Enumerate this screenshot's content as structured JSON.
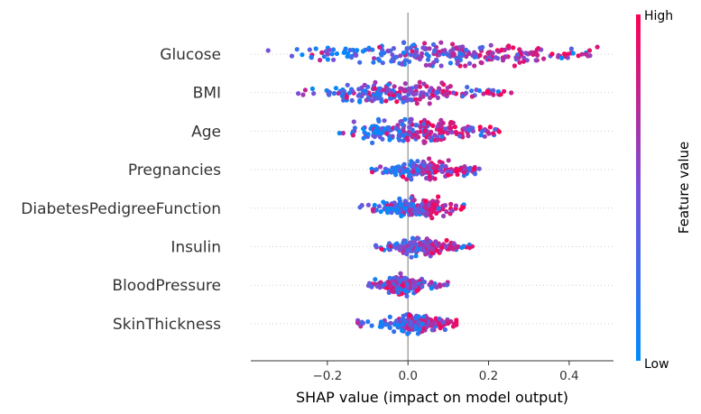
{
  "chart_data": {
    "type": "scatter",
    "subtype": "shap-beeswarm",
    "xlabel": "SHAP value (impact on model output)",
    "xlim": [
      -0.39,
      0.51
    ],
    "xticks": [
      {
        "value": -0.2,
        "label": "−0.2"
      },
      {
        "value": 0.0,
        "label": "0.0"
      },
      {
        "value": 0.2,
        "label": "0.2"
      },
      {
        "value": 0.4,
        "label": "0.4"
      }
    ],
    "zero_line": 0.0,
    "colorbar": {
      "title": "Feature value",
      "high_label": "High",
      "low_label": "Low",
      "low_color": "#008bfb",
      "high_color": "#ff0052"
    },
    "features": [
      {
        "name": "Glucose",
        "min": -0.35,
        "max": 0.47,
        "spread": 1.0,
        "low_center": -0.09,
        "high_center": 0.28,
        "n": 260
      },
      {
        "name": "BMI",
        "min": -0.28,
        "max": 0.27,
        "spread": 0.85,
        "low_center": -0.12,
        "high_center": 0.07,
        "n": 220
      },
      {
        "name": "Age",
        "min": -0.17,
        "max": 0.24,
        "spread": 0.95,
        "low_center": -0.05,
        "high_center": 0.09,
        "n": 230
      },
      {
        "name": "Pregnancies",
        "min": -0.09,
        "max": 0.19,
        "spread": 0.7,
        "low_center": -0.01,
        "high_center": 0.09,
        "n": 200
      },
      {
        "name": "DiabetesPedigreeFunction",
        "min": -0.12,
        "max": 0.14,
        "spread": 0.75,
        "low_center": -0.02,
        "high_center": 0.06,
        "n": 210
      },
      {
        "name": "Insulin",
        "min": -0.08,
        "max": 0.16,
        "spread": 0.65,
        "low_center": 0.0,
        "high_center": 0.06,
        "n": 190
      },
      {
        "name": "BloodPressure",
        "min": -0.1,
        "max": 0.1,
        "spread": 0.7,
        "low_center": 0.0,
        "high_center": -0.02,
        "n": 200
      },
      {
        "name": "SkinThickness",
        "min": -0.13,
        "max": 0.12,
        "spread": 0.7,
        "low_center": 0.0,
        "high_center": 0.05,
        "n": 200
      }
    ]
  }
}
